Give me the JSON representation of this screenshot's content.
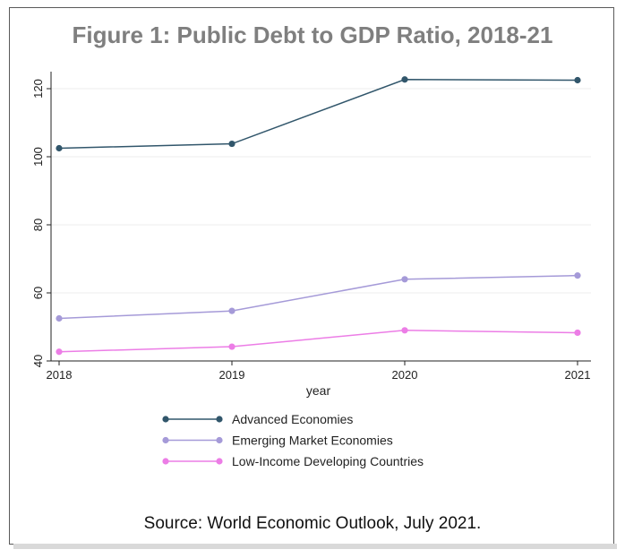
{
  "chart_data": {
    "type": "line",
    "title": "Figure 1: Public Debt to GDP Ratio, 2018-21",
    "xlabel": "year",
    "ylabel": "",
    "categories": [
      "2018",
      "2019",
      "2020",
      "2021"
    ],
    "ylim": [
      40,
      125
    ],
    "yticks": [
      "40",
      "60",
      "80",
      "100",
      "120"
    ],
    "grid": true,
    "legend_position": "bottom",
    "series": [
      {
        "name": "Advanced Economies",
        "values": [
          102.5,
          103.8,
          122.7,
          122.5
        ],
        "color": "#31566b"
      },
      {
        "name": "Emerging Market Economies",
        "values": [
          52.5,
          54.7,
          64.0,
          65.1
        ],
        "color": "#a59ad8"
      },
      {
        "name": "Low-Income Developing Countries",
        "values": [
          42.7,
          44.2,
          49.0,
          48.3
        ],
        "color": "#ec7de6"
      }
    ],
    "source": "Source: World Economic Outlook, July 2021."
  }
}
